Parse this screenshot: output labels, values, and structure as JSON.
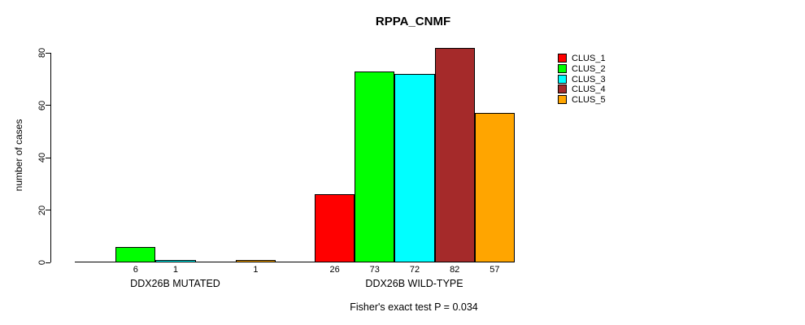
{
  "title": "RPPA_CNMF",
  "footnote": "Fisher's exact test P = 0.034",
  "y_axis": {
    "label": "number of cases",
    "ticks": [
      "0",
      "20",
      "40",
      "60",
      "80"
    ]
  },
  "legend": [
    {
      "label": "CLUS_1",
      "color": "#FF0000"
    },
    {
      "label": "CLUS_2",
      "color": "#00FF00"
    },
    {
      "label": "CLUS_3",
      "color": "#00FFFF"
    },
    {
      "label": "CLUS_4",
      "color": "#A52A2A"
    },
    {
      "label": "CLUS_5",
      "color": "#FFA500"
    }
  ],
  "chart_data": {
    "type": "bar",
    "title": "RPPA_CNMF",
    "ylabel": "number of cases",
    "ylim": [
      0,
      82
    ],
    "yticks": [
      0,
      20,
      40,
      60,
      80
    ],
    "grid": false,
    "legend_position": "right",
    "categories": [
      "DDX26B MUTATED",
      "DDX26B WILD-TYPE"
    ],
    "series": [
      {
        "name": "CLUS_1",
        "color": "#FF0000",
        "values": [
          0,
          26
        ]
      },
      {
        "name": "CLUS_2",
        "color": "#00FF00",
        "values": [
          6,
          73
        ]
      },
      {
        "name": "CLUS_3",
        "color": "#00FFFF",
        "values": [
          1,
          72
        ]
      },
      {
        "name": "CLUS_4",
        "color": "#A52A2A",
        "values": [
          0,
          82
        ]
      },
      {
        "name": "CLUS_5",
        "color": "#FFA500",
        "values": [
          1,
          57
        ]
      }
    ],
    "bar_value_labels_shown_for_nonzero_only": true,
    "annotation": "Fisher's exact test P = 0.034"
  }
}
